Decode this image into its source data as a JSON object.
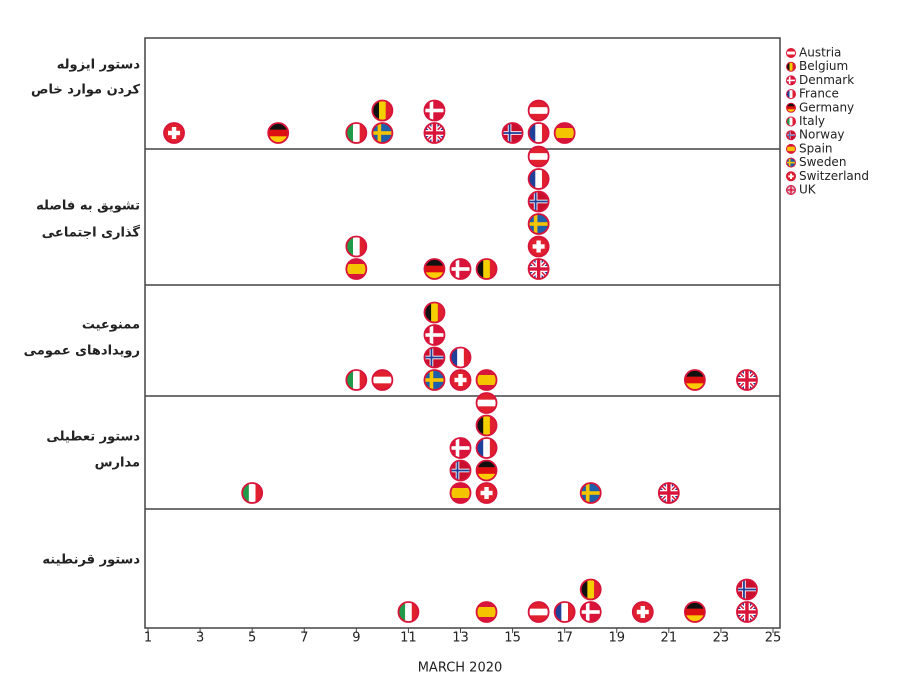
{
  "chart_data": {
    "type": "flag-dot",
    "xlabel": "MARCH 2020",
    "xlim": [
      1,
      25
    ],
    "xticks": [
      1,
      3,
      5,
      7,
      9,
      11,
      13,
      15,
      17,
      19,
      21,
      23,
      25
    ],
    "categories": [
      [
        "دستور ایزوله",
        "کردن موارد خاص"
      ],
      [
        "تشویق به فاصله",
        "گذاری اجتماعی"
      ],
      [
        "ممنوعیت",
        "رویدادهای عمومی"
      ],
      [
        "دستور تعطیلی",
        "مدارس"
      ],
      [
        "دستور قرنطینه"
      ]
    ],
    "series": [
      {
        "name": "Austria",
        "flag": {
          "type": "h",
          "colors": [
            "#e0202e",
            "#ffffff",
            "#e0202e"
          ]
        },
        "values": [
          16,
          16,
          10,
          14,
          16
        ]
      },
      {
        "name": "Belgium",
        "flag": {
          "type": "v",
          "colors": [
            "#111111",
            "#f5d000",
            "#e0202e"
          ]
        },
        "values": [
          10,
          14,
          12,
          14,
          18
        ]
      },
      {
        "name": "Denmark",
        "flag": {
          "type": "nordic",
          "colors": [
            "#d8143a",
            "#ffffff"
          ]
        },
        "values": [
          12,
          13,
          12,
          13,
          18
        ]
      },
      {
        "name": "France",
        "flag": {
          "type": "v",
          "colors": [
            "#1f3f99",
            "#ffffff",
            "#e0202e"
          ]
        },
        "values": [
          16,
          16,
          13,
          14,
          17
        ]
      },
      {
        "name": "Germany",
        "flag": {
          "type": "h",
          "colors": [
            "#111111",
            "#dd1111",
            "#ffcc00"
          ]
        },
        "values": [
          6,
          12,
          22,
          14,
          22
        ]
      },
      {
        "name": "Italy",
        "flag": {
          "type": "v",
          "colors": [
            "#1f9a48",
            "#ffffff",
            "#e0202e"
          ]
        },
        "values": [
          9,
          9,
          9,
          5,
          11
        ]
      },
      {
        "name": "Norway",
        "flag": {
          "type": "nordic",
          "colors": [
            "#c8102e",
            "#ffffff",
            "#1f3f99"
          ]
        },
        "values": [
          15,
          16,
          12,
          13,
          24
        ]
      },
      {
        "name": "Spain",
        "flag": {
          "type": "h",
          "colors": [
            "#d8143a",
            "#f5c400",
            "#f5c400",
            "#d8143a"
          ]
        },
        "values": [
          17,
          9,
          14,
          13,
          14
        ]
      },
      {
        "name": "Sweden",
        "flag": {
          "type": "nordic",
          "colors": [
            "#1d5fa8",
            "#f5c400"
          ]
        },
        "values": [
          10,
          16,
          12,
          18,
          null
        ]
      },
      {
        "name": "Switzerland",
        "flag": {
          "type": "plus",
          "colors": [
            "#e0202e",
            "#ffffff"
          ]
        },
        "values": [
          2,
          16,
          13,
          14,
          20
        ]
      },
      {
        "name": "UK",
        "flag": {
          "type": "union",
          "colors": [
            "#1f3f99",
            "#ffffff",
            "#d8143a"
          ]
        },
        "values": [
          12,
          16,
          24,
          21,
          24
        ]
      }
    ]
  }
}
